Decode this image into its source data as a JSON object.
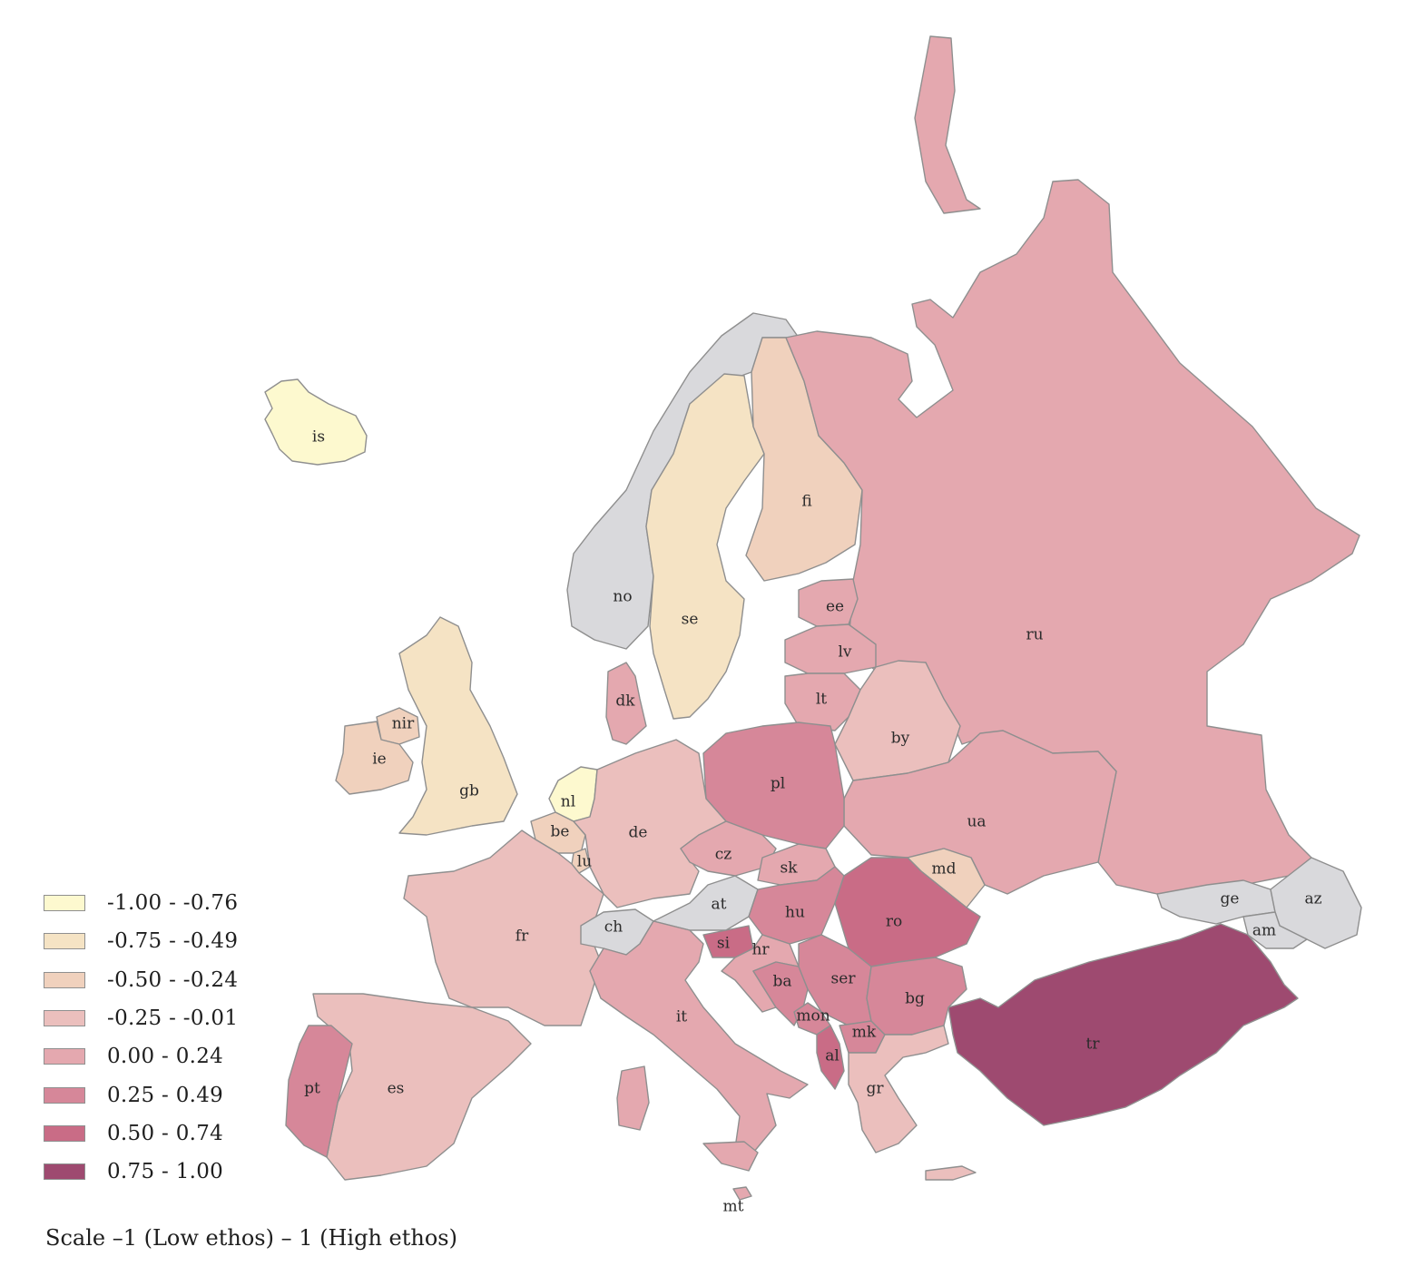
{
  "legend": [
    {
      "label": "-1.00 - -0.76",
      "color": "#fdf9cf"
    },
    {
      "label": "-0.75 - -0.49",
      "color": "#f5e3c4"
    },
    {
      "label": "-0.50 - -0.24",
      "color": "#f0d1bd"
    },
    {
      "label": "-0.25 - -0.01",
      "color": "#ebbfbd"
    },
    {
      "label": "0.00 - 0.24",
      "color": "#e4a8af"
    },
    {
      "label": "0.25 - 0.49",
      "color": "#d68799"
    },
    {
      "label": "0.50 - 0.74",
      "color": "#c96c86"
    },
    {
      "label": "0.75 - 1.00",
      "color": "#9e4a70"
    }
  ],
  "no_data_color": "#d9d9dc",
  "caption": "Scale –1 (Low ethos) – 1 (High ethos)",
  "countries": [
    {
      "code": "is",
      "cls": 0
    },
    {
      "code": "no",
      "cls": -1
    },
    {
      "code": "se",
      "cls": 1
    },
    {
      "code": "fi",
      "cls": 2
    },
    {
      "code": "ru",
      "cls": 4
    },
    {
      "code": "ee",
      "cls": 4
    },
    {
      "code": "lv",
      "cls": 4
    },
    {
      "code": "lt",
      "cls": 4
    },
    {
      "code": "by",
      "cls": 3
    },
    {
      "code": "ua",
      "cls": 4
    },
    {
      "code": "md",
      "cls": 2
    },
    {
      "code": "pl",
      "cls": 5
    },
    {
      "code": "dk",
      "cls": 4
    },
    {
      "code": "gb",
      "cls": 1
    },
    {
      "code": "nir",
      "cls": 2
    },
    {
      "code": "ie",
      "cls": 2
    },
    {
      "code": "nl",
      "cls": 0
    },
    {
      "code": "be",
      "cls": 2
    },
    {
      "code": "lu",
      "cls": 2
    },
    {
      "code": "de",
      "cls": 3
    },
    {
      "code": "fr",
      "cls": 3
    },
    {
      "code": "es",
      "cls": 3
    },
    {
      "code": "pt",
      "cls": 5
    },
    {
      "code": "ch",
      "cls": -1
    },
    {
      "code": "at",
      "cls": -1
    },
    {
      "code": "it",
      "cls": 4
    },
    {
      "code": "cz",
      "cls": 4
    },
    {
      "code": "sk",
      "cls": 4
    },
    {
      "code": "hu",
      "cls": 5
    },
    {
      "code": "si",
      "cls": 6
    },
    {
      "code": "hr",
      "cls": 4
    },
    {
      "code": "ba",
      "cls": 5
    },
    {
      "code": "ser",
      "cls": 5
    },
    {
      "code": "mon",
      "cls": 5
    },
    {
      "code": "al",
      "cls": 6
    },
    {
      "code": "mk",
      "cls": 5
    },
    {
      "code": "ro",
      "cls": 6
    },
    {
      "code": "bg",
      "cls": 5
    },
    {
      "code": "gr",
      "cls": 3
    },
    {
      "code": "tr",
      "cls": 7
    },
    {
      "code": "mt",
      "cls": 4
    },
    {
      "code": "ge",
      "cls": -1
    },
    {
      "code": "az",
      "cls": -1
    },
    {
      "code": "am",
      "cls": -1
    }
  ]
}
